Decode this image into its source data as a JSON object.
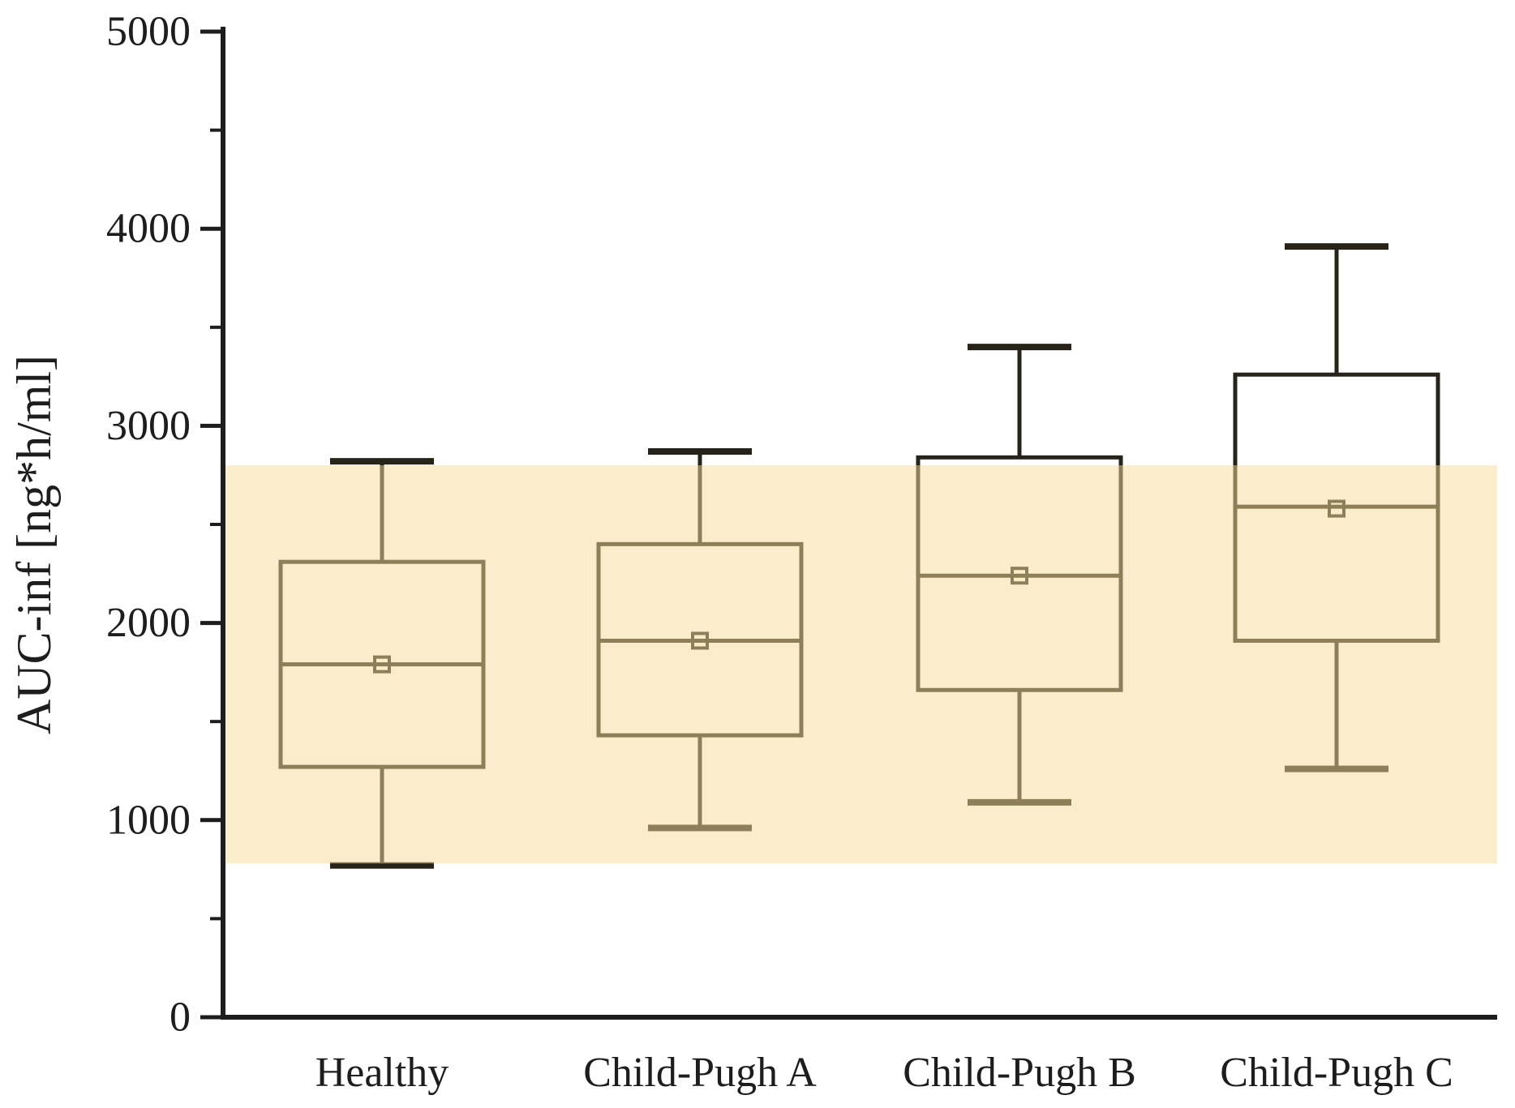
{
  "figure": {
    "background": "#ffffff",
    "axis_color": "#1d1d1d",
    "box_line_color": "#262318",
    "band_color_rgba": "rgba(245,219,151,0.5)",
    "band_solid_equivalent": "#faedcb"
  },
  "chart_data": {
    "type": "box",
    "title": "",
    "xlabel": "",
    "ylabel": "AUC-inf [ng*h/ml]",
    "ylim": [
      0,
      5000
    ],
    "yticks_major": [
      0,
      1000,
      2000,
      3000,
      4000,
      5000
    ],
    "yticks_minor": [
      500,
      1500,
      2500,
      3500,
      4500
    ],
    "grid": false,
    "legend": "none",
    "categories": [
      "Healthy",
      "Child-Pugh A",
      "Child-Pugh B",
      "Child-Pugh C"
    ],
    "series": [
      {
        "name": "Healthy",
        "whisker_low": 770,
        "q1": 1270,
        "median": 1790,
        "mean": 1790,
        "q3": 2310,
        "whisker_high": 2820
      },
      {
        "name": "Child-Pugh A",
        "whisker_low": 960,
        "q1": 1430,
        "median": 1910,
        "mean": 1910,
        "q3": 2400,
        "whisker_high": 2870
      },
      {
        "name": "Child-Pugh B",
        "whisker_low": 1090,
        "q1": 1660,
        "median": 2240,
        "mean": 2240,
        "q3": 2840,
        "whisker_high": 3400
      },
      {
        "name": "Child-Pugh C",
        "whisker_low": 1260,
        "q1": 1910,
        "median": 2590,
        "mean": 2580,
        "q3": 3260,
        "whisker_high": 3910
      }
    ],
    "reference_band": {
      "low": 780,
      "high": 2800,
      "note": "shaded reference range behind/over boxes"
    }
  }
}
